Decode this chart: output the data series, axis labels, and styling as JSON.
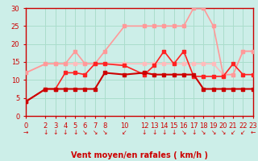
{
  "xlabel": "Vent moyen/en rafales ( km/h )",
  "background_color": "#cceee8",
  "grid_color": "#aaddcc",
  "xlim": [
    0,
    23
  ],
  "ylim": [
    0,
    30
  ],
  "yticks": [
    0,
    5,
    10,
    15,
    20,
    25,
    30
  ],
  "xticks": [
    0,
    2,
    3,
    4,
    5,
    6,
    7,
    8,
    10,
    12,
    13,
    14,
    15,
    16,
    17,
    18,
    19,
    20,
    21,
    22,
    23
  ],
  "series": [
    {
      "x": [
        0,
        2,
        3,
        4,
        5,
        6,
        7,
        8,
        10,
        12,
        13,
        14,
        15,
        16,
        17,
        18,
        19,
        20,
        21,
        22,
        23
      ],
      "y": [
        4,
        7.5,
        7.5,
        7.5,
        7.5,
        7.5,
        7.5,
        12,
        11.5,
        12,
        11.5,
        11.5,
        11.5,
        11.5,
        11.5,
        7.5,
        7.5,
        7.5,
        7.5,
        7.5,
        7.5
      ],
      "color": "#cc0000",
      "linewidth": 1.5,
      "marker": "s",
      "markersize": 2.5,
      "zorder": 5
    },
    {
      "x": [
        0,
        2,
        3,
        4,
        5,
        6,
        7,
        8,
        10,
        12,
        13,
        14,
        15,
        16,
        17,
        18,
        19,
        20,
        21,
        22,
        23
      ],
      "y": [
        4,
        7.5,
        7.5,
        12,
        12,
        11.5,
        14.5,
        14.5,
        14,
        11.5,
        14,
        18,
        14.5,
        18,
        11,
        11,
        11,
        11,
        14.5,
        11.5,
        11.5
      ],
      "color": "#ff2222",
      "linewidth": 1.2,
      "marker": "s",
      "markersize": 2.5,
      "zorder": 4
    },
    {
      "x": [
        0,
        2,
        3,
        4,
        5,
        6,
        7,
        8,
        10,
        12,
        13,
        14,
        15,
        16,
        17,
        18,
        19,
        20,
        21,
        22,
        23
      ],
      "y": [
        12,
        14.5,
        14.5,
        14.5,
        18,
        14.5,
        14.5,
        18,
        25,
        25,
        25,
        25,
        25,
        25,
        30,
        30,
        25,
        11.5,
        11.5,
        18,
        18
      ],
      "color": "#ff9999",
      "linewidth": 1.2,
      "marker": "s",
      "markersize": 2.5,
      "zorder": 3
    },
    {
      "x": [
        0,
        2,
        3,
        4,
        5,
        6,
        7,
        8,
        10,
        12,
        13,
        14,
        15,
        16,
        17,
        18,
        19,
        20,
        21,
        22,
        23
      ],
      "y": [
        12,
        14.5,
        14.5,
        14.5,
        14.5,
        14.5,
        14.5,
        14.5,
        14.5,
        14.5,
        14.5,
        14.5,
        14.5,
        14.5,
        14.5,
        14.5,
        14.5,
        11.5,
        11.5,
        18,
        18
      ],
      "color": "#ffbbbb",
      "linewidth": 1.2,
      "marker": "s",
      "markersize": 2.5,
      "zorder": 2
    }
  ],
  "wind_arrows_x": [
    0,
    2,
    3,
    4,
    5,
    6,
    7,
    8,
    10,
    12,
    13,
    14,
    15,
    16,
    17,
    18,
    19,
    20,
    21,
    22,
    23
  ],
  "wind_arrow_color": "#cc0000",
  "wind_arrow_fontsize": 5.5,
  "tick_color": "#cc0000",
  "tick_labelsize": 6,
  "spine_color": "#cc0000",
  "xlabel_fontsize": 7,
  "xlabel_color": "#cc0000"
}
